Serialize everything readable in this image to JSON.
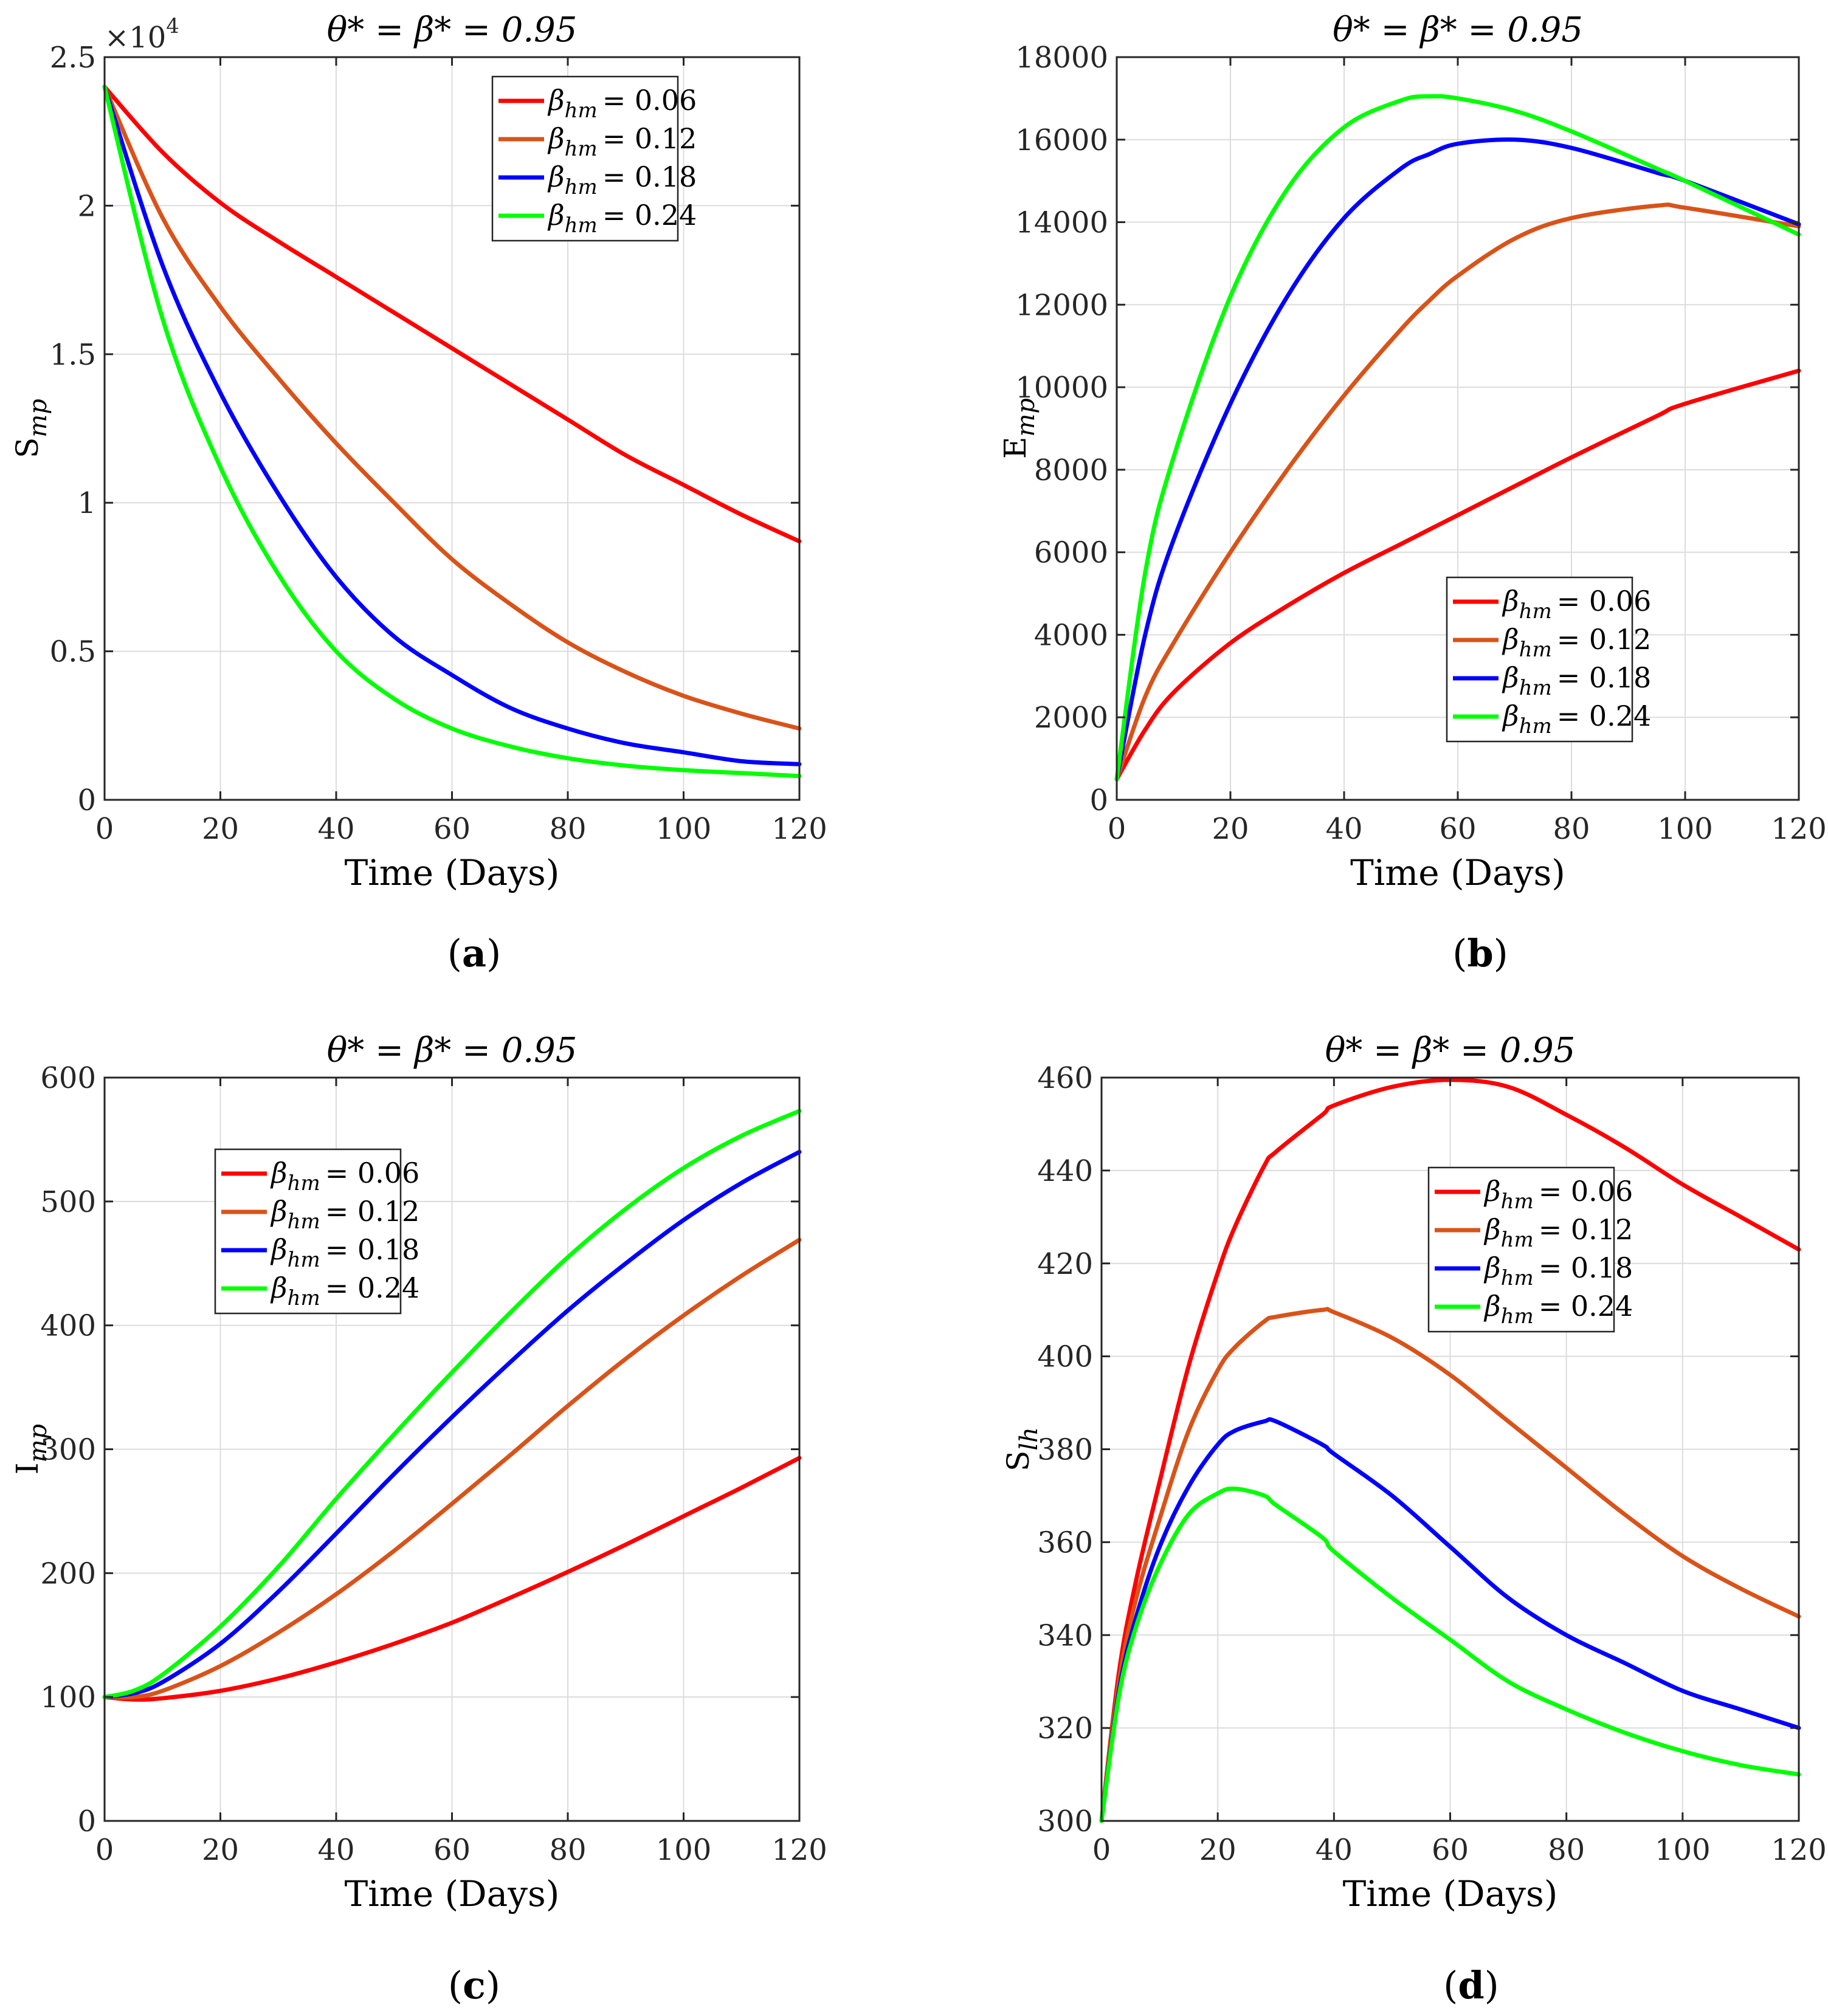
{
  "figure": {
    "colors": {
      "red": "#ff0000",
      "orange": "#d95319",
      "blue": "#0000ff",
      "green": "#00ff00",
      "axis": "#262626",
      "grid": "#dcdcdc"
    }
  },
  "legend_entries": [
    {
      "label": "β",
      "sub": "hm",
      "value": "= 0.06",
      "color": "#ff0000"
    },
    {
      "label": "β",
      "sub": "hm",
      "value": "= 0.12",
      "color": "#d95319"
    },
    {
      "label": "β",
      "sub": "hm",
      "value": "= 0.18",
      "color": "#0000ff"
    },
    {
      "label": "β",
      "sub": "hm",
      "value": "= 0.24",
      "color": "#00ff00"
    }
  ],
  "chart_data": [
    {
      "panel": "(a)",
      "type": "line",
      "title": "θ* = β* = 0.95",
      "xlabel": "Time (Days)",
      "ylabel": "S",
      "ylabel_sub": "mp",
      "axis_multiplier": "×10",
      "axis_multiplier_exp": "4",
      "xlim": [
        0,
        120
      ],
      "ylim": [
        0,
        2.5
      ],
      "xticks": [
        0,
        20,
        40,
        60,
        80,
        100,
        120
      ],
      "xtick_labels": [
        "0",
        "20",
        "40",
        "60",
        "80",
        "100",
        "120"
      ],
      "yticks": [
        0,
        0.5,
        1,
        1.5,
        2,
        2.5
      ],
      "ytick_labels": [
        "0",
        "0.5",
        "1",
        "1.5",
        "2",
        "2.5"
      ],
      "legend_position": "top-right",
      "x": [
        0,
        10,
        20,
        30,
        40,
        50,
        60,
        70,
        80,
        90,
        100,
        110,
        120
      ],
      "series": [
        {
          "name": "βhm = 0.06",
          "color": "#ff0000",
          "values": [
            2.4,
            2.18,
            2.01,
            1.88,
            1.76,
            1.64,
            1.52,
            1.4,
            1.28,
            1.16,
            1.06,
            0.96,
            0.87
          ]
        },
        {
          "name": "βhm = 0.12",
          "color": "#d95319",
          "values": [
            2.4,
            1.96,
            1.66,
            1.42,
            1.2,
            1.0,
            0.81,
            0.66,
            0.53,
            0.43,
            0.35,
            0.29,
            0.24
          ]
        },
        {
          "name": "βhm = 0.18",
          "color": "#0000ff",
          "values": [
            2.4,
            1.8,
            1.37,
            1.03,
            0.75,
            0.55,
            0.42,
            0.31,
            0.24,
            0.19,
            0.16,
            0.13,
            0.12
          ]
        },
        {
          "name": "βhm = 0.24",
          "color": "#00ff00",
          "values": [
            2.4,
            1.62,
            1.12,
            0.76,
            0.5,
            0.34,
            0.24,
            0.18,
            0.14,
            0.115,
            0.1,
            0.09,
            0.08
          ]
        }
      ]
    },
    {
      "panel": "(b)",
      "type": "line",
      "title": "θ* = β* = 0.95",
      "xlabel": "Time (Days)",
      "ylabel": "E",
      "ylabel_sub": "mp",
      "xlim": [
        0,
        120
      ],
      "ylim": [
        0,
        18000
      ],
      "xticks": [
        0,
        20,
        40,
        60,
        80,
        100,
        120
      ],
      "xtick_labels": [
        "0",
        "20",
        "40",
        "60",
        "80",
        "100",
        "120"
      ],
      "yticks": [
        0,
        2000,
        4000,
        6000,
        8000,
        10000,
        12000,
        14000,
        16000,
        18000
      ],
      "ytick_labels": [
        "0",
        "2000",
        "4000",
        "6000",
        "8000",
        "10000",
        "12000",
        "14000",
        "16000",
        "18000"
      ],
      "legend_position": "bottom-center",
      "x": [
        0,
        5,
        10,
        20,
        30,
        40,
        50,
        55,
        60,
        70,
        80,
        95,
        100,
        120
      ],
      "series": [
        {
          "name": "βhm = 0.06",
          "color": "#ff0000",
          "values": [
            500,
            1700,
            2600,
            3800,
            4700,
            5500,
            6200,
            6550,
            6900,
            7600,
            8300,
            9300,
            9600,
            10400
          ]
        },
        {
          "name": "βhm = 0.12",
          "color": "#d95319",
          "values": [
            500,
            2500,
            3800,
            6000,
            8000,
            9800,
            11400,
            12100,
            12700,
            13600,
            14100,
            14400,
            14350,
            13900
          ]
        },
        {
          "name": "βhm = 0.18",
          "color": "#0000ff",
          "values": [
            500,
            4000,
            6300,
            9600,
            12200,
            14100,
            15300,
            15650,
            15900,
            16000,
            15800,
            15200,
            15000,
            13950
          ]
        },
        {
          "name": "βhm = 0.24",
          "color": "#00ff00",
          "values": [
            500,
            5500,
            8300,
            12200,
            14800,
            16300,
            16950,
            17050,
            17000,
            16700,
            16200,
            15300,
            15000,
            13700
          ]
        }
      ]
    },
    {
      "panel": "(c)",
      "type": "line",
      "title": "θ* = β* = 0.95",
      "xlabel": "Time (Days)",
      "ylabel": "I",
      "ylabel_sub": "mp",
      "xlim": [
        0,
        120
      ],
      "ylim": [
        0,
        600
      ],
      "xticks": [
        0,
        20,
        40,
        60,
        80,
        100,
        120
      ],
      "xtick_labels": [
        "0",
        "20",
        "40",
        "60",
        "80",
        "100",
        "120"
      ],
      "yticks": [
        0,
        100,
        200,
        300,
        400,
        500,
        600
      ],
      "ytick_labels": [
        "0",
        "100",
        "200",
        "300",
        "400",
        "500",
        "600"
      ],
      "legend_position": "top-left",
      "x": [
        0,
        5,
        10,
        20,
        30,
        40,
        50,
        60,
        70,
        80,
        90,
        100,
        110,
        120
      ],
      "series": [
        {
          "name": "βhm = 0.06",
          "color": "#ff0000",
          "values": [
            100,
            98,
            99,
            105,
            115,
            128,
            143,
            160,
            180,
            201,
            223,
            246,
            269,
            293
          ]
        },
        {
          "name": "βhm = 0.12",
          "color": "#d95319",
          "values": [
            100,
            100,
            105,
            125,
            152,
            183,
            218,
            256,
            295,
            335,
            373,
            408,
            440,
            469
          ]
        },
        {
          "name": "βhm = 0.18",
          "color": "#0000ff",
          "values": [
            100,
            103,
            112,
            143,
            185,
            232,
            280,
            326,
            370,
            412,
            450,
            485,
            515,
            540
          ]
        },
        {
          "name": "βhm = 0.24",
          "color": "#00ff00",
          "values": [
            100,
            105,
            118,
            157,
            205,
            260,
            312,
            362,
            410,
            455,
            494,
            527,
            553,
            573
          ]
        }
      ]
    },
    {
      "panel": "(d)",
      "type": "line",
      "title": "θ* = β* = 0.95",
      "xlabel": "Time (Days)",
      "ylabel": "S",
      "ylabel_sub": "lh",
      "xlim": [
        0,
        120
      ],
      "ylim": [
        300,
        460
      ],
      "xticks": [
        0,
        20,
        40,
        60,
        80,
        100,
        120
      ],
      "xtick_labels": [
        "0",
        "20",
        "40",
        "60",
        "80",
        "100",
        "120"
      ],
      "yticks": [
        300,
        320,
        340,
        360,
        380,
        400,
        420,
        440,
        460
      ],
      "ytick_labels": [
        "300",
        "320",
        "340",
        "360",
        "380",
        "400",
        "420",
        "440",
        "460"
      ],
      "legend_position": "top-right",
      "x": [
        0,
        3,
        6,
        10,
        15,
        20,
        23,
        28,
        30,
        38,
        40,
        50,
        60,
        70,
        80,
        90,
        100,
        110,
        120
      ],
      "series": [
        {
          "name": "βhm = 0.06",
          "color": "#ff0000",
          "values": [
            300,
            332,
            352,
            373,
            398,
            418,
            428,
            441,
            444,
            452,
            454,
            458,
            459.5,
            458,
            452,
            445,
            437,
            430,
            423
          ]
        },
        {
          "name": "βhm = 0.12",
          "color": "#d95319",
          "values": [
            300,
            330,
            348,
            365,
            384,
            397,
            402,
            407.5,
            408.5,
            410,
            409.5,
            404,
            396,
            386,
            376,
            366,
            357,
            350,
            344
          ]
        },
        {
          "name": "βhm = 0.18",
          "color": "#0000ff",
          "values": [
            300,
            328,
            344,
            359,
            372,
            381,
            384,
            386,
            386,
            381,
            379,
            370,
            359,
            348,
            340,
            334,
            328,
            324,
            320
          ]
        },
        {
          "name": "βhm = 0.24",
          "color": "#00ff00",
          "values": [
            300,
            327,
            342,
            355,
            366,
            370.5,
            371.5,
            370,
            368,
            361,
            358,
            348,
            339,
            330,
            324,
            319,
            315,
            312,
            310
          ]
        }
      ]
    }
  ]
}
